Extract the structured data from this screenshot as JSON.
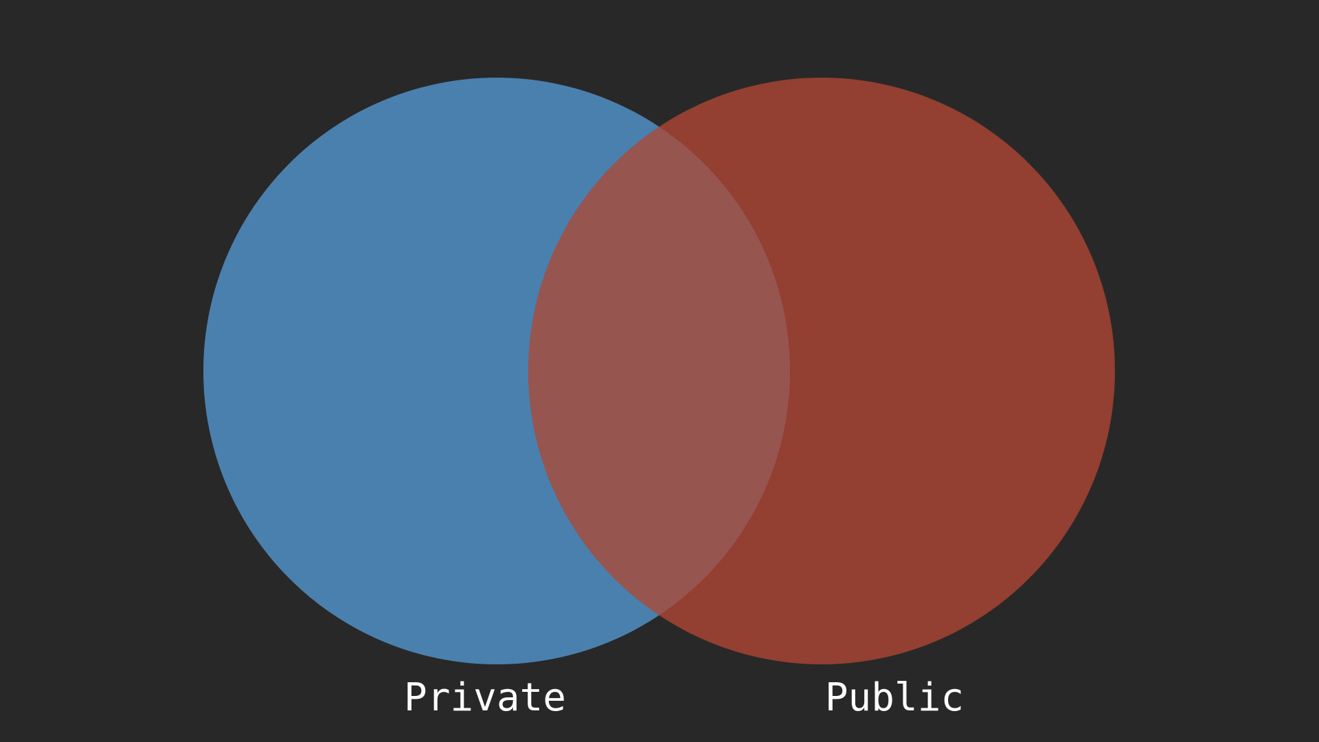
{
  "diagram": {
    "type": "venn",
    "background_color": "#282828",
    "sets": [
      {
        "label": "Private",
        "color": "#4a80ae"
      },
      {
        "label": "Public",
        "color": "#933f31"
      }
    ],
    "overlap_color": "#975550"
  }
}
